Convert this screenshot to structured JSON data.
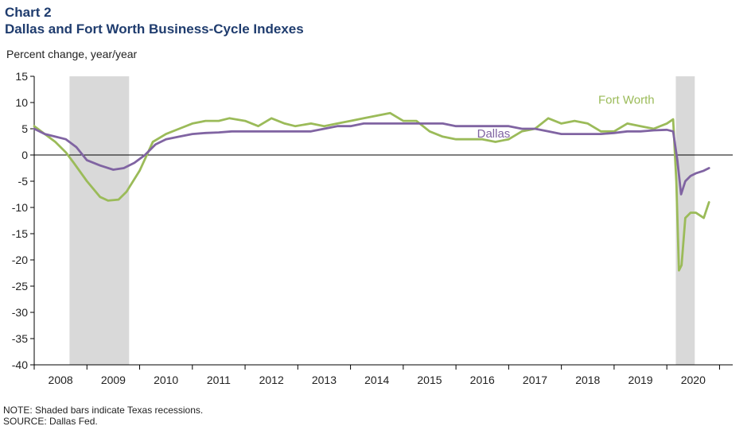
{
  "header": {
    "chart_label": "Chart 2",
    "title": "Dallas and Fort Worth Business-Cycle Indexes",
    "ylabel": "Percent change, year/year"
  },
  "footer": {
    "note": "NOTE: Shaded bars indicate Texas recessions.",
    "source": "SOURCE: Dallas Fed."
  },
  "colors": {
    "fort_worth": "#9bbb59",
    "dallas": "#8064a2",
    "recession": "#d9d9d9",
    "axis": "#000000"
  },
  "chart_data": {
    "type": "line",
    "title": "Dallas and Fort Worth Business-Cycle Indexes",
    "ylabel": "Percent change, year/year",
    "xlabel": "",
    "xlim": [
      2007.5,
      2020.75
    ],
    "ylim": [
      -40,
      15
    ],
    "yticks": [
      15,
      10,
      5,
      0,
      -5,
      -10,
      -15,
      -20,
      -25,
      -30,
      -35,
      -40
    ],
    "xtick_labels": [
      "2008",
      "2009",
      "2010",
      "2011",
      "2012",
      "2013",
      "2014",
      "2015",
      "2016",
      "2017",
      "2018",
      "2019",
      "2020"
    ],
    "recessions": [
      [
        2008.17,
        2009.3
      ],
      [
        2019.67,
        2020.03
      ]
    ],
    "grid": false,
    "legend": "inline labels",
    "series": [
      {
        "name": "Fort Worth",
        "x": [
          2007.5,
          2007.7,
          2007.9,
          2008.1,
          2008.25,
          2008.5,
          2008.75,
          2008.9,
          2009.1,
          2009.25,
          2009.5,
          2009.75,
          2010.0,
          2010.25,
          2010.5,
          2010.75,
          2011.0,
          2011.2,
          2011.5,
          2011.75,
          2012.0,
          2012.25,
          2012.45,
          2012.75,
          2013.0,
          2013.25,
          2013.5,
          2013.75,
          2014.0,
          2014.25,
          2014.5,
          2014.75,
          2015.0,
          2015.25,
          2015.5,
          2015.75,
          2016.0,
          2016.25,
          2016.5,
          2016.75,
          2017.0,
          2017.25,
          2017.5,
          2017.75,
          2018.0,
          2018.25,
          2018.5,
          2018.75,
          2019.0,
          2019.25,
          2019.5,
          2019.62,
          2019.68,
          2019.73,
          2019.78,
          2019.85,
          2019.95,
          2020.05,
          2020.2,
          2020.3
        ],
        "y": [
          5.5,
          4.0,
          2.5,
          0.5,
          -1.5,
          -5.0,
          -8.0,
          -8.7,
          -8.5,
          -7.0,
          -3.0,
          2.5,
          4.0,
          5.0,
          6.0,
          6.5,
          6.5,
          7.0,
          6.5,
          5.5,
          7.0,
          6.0,
          5.5,
          6.0,
          5.5,
          6.0,
          6.5,
          7.0,
          7.5,
          8.0,
          6.5,
          6.5,
          4.5,
          3.5,
          3.0,
          3.0,
          3.0,
          2.5,
          3.0,
          4.5,
          5.0,
          7.0,
          6.0,
          6.5,
          6.0,
          4.5,
          4.5,
          6.0,
          5.5,
          5.0,
          6.0,
          6.8,
          -5.0,
          -22.0,
          -21.0,
          -12.0,
          -11.0,
          -11.0,
          -12.0,
          -9.0
        ]
      },
      {
        "name": "Dallas",
        "x": [
          2007.5,
          2007.7,
          2007.9,
          2008.1,
          2008.3,
          2008.5,
          2008.75,
          2009.0,
          2009.2,
          2009.4,
          2009.6,
          2009.8,
          2010.0,
          2010.25,
          2010.5,
          2010.75,
          2011.0,
          2011.25,
          2011.5,
          2011.75,
          2012.0,
          2012.25,
          2012.5,
          2012.75,
          2013.0,
          2013.25,
          2013.5,
          2013.75,
          2014.0,
          2014.25,
          2014.5,
          2014.75,
          2015.0,
          2015.25,
          2015.5,
          2015.75,
          2016.0,
          2016.25,
          2016.5,
          2016.75,
          2017.0,
          2017.25,
          2017.5,
          2017.75,
          2018.0,
          2018.25,
          2018.5,
          2018.75,
          2019.0,
          2019.25,
          2019.5,
          2019.62,
          2019.7,
          2019.77,
          2019.85,
          2019.95,
          2020.05,
          2020.2,
          2020.3
        ],
        "y": [
          5.0,
          4.0,
          3.5,
          3.0,
          1.5,
          -1.0,
          -2.0,
          -2.8,
          -2.5,
          -1.5,
          0.0,
          2.0,
          3.0,
          3.5,
          4.0,
          4.2,
          4.3,
          4.5,
          4.5,
          4.5,
          4.5,
          4.5,
          4.5,
          4.5,
          5.0,
          5.5,
          5.5,
          6.0,
          6.0,
          6.0,
          6.0,
          6.0,
          6.0,
          6.0,
          5.5,
          5.5,
          5.5,
          5.5,
          5.5,
          5.0,
          5.0,
          4.5,
          4.0,
          4.0,
          4.0,
          4.0,
          4.2,
          4.5,
          4.5,
          4.7,
          4.8,
          4.5,
          -1.0,
          -7.5,
          -5.0,
          -4.0,
          -3.5,
          -3.0,
          -2.5
        ]
      }
    ],
    "annotations": [
      {
        "text": "Fort Worth",
        "x": 2018.2,
        "y": 9.8,
        "series": "Fort Worth"
      },
      {
        "text": "Dallas",
        "x": 2015.9,
        "y": 3.3,
        "series": "Dallas"
      }
    ]
  }
}
